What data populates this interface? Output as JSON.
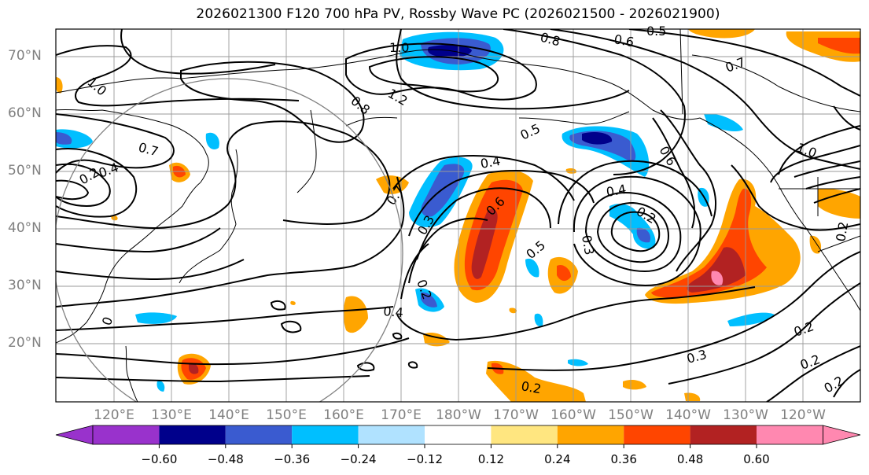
{
  "title": "2026021300 F120 700 hPa PV, Rossby Wave PC (2026021500 - 2026021900)",
  "lat_ticks": [
    "70°N",
    "60°N",
    "50°N",
    "40°N",
    "30°N",
    "20°N"
  ],
  "lon_ticks": [
    "120°E",
    "130°E",
    "140°E",
    "150°E",
    "160°E",
    "170°E",
    "180°W",
    "170°W",
    "160°W",
    "150°W",
    "140°W",
    "130°W",
    "120°W"
  ],
  "colorbar": {
    "labels": [
      "−0.60",
      "−0.48",
      "−0.36",
      "−0.24",
      "−0.12",
      "0.12",
      "0.24",
      "0.36",
      "0.48",
      "0.60"
    ],
    "colors": [
      "#9932cc",
      "#00008b",
      "#3a5bd0",
      "#00bfff",
      "#b0e2ff",
      "#ffffff",
      "#ffe680",
      "#ffa500",
      "#ff4500",
      "#b22222",
      "#ff88b0"
    ]
  },
  "contour_labels": [
    "1.0",
    "1.0",
    "1.2",
    "0.8",
    "0.8",
    "0.6",
    "0.5",
    "0.7",
    "0.7",
    "0.5",
    "0.4",
    "0.7",
    "0.6",
    "0.4",
    "0.2",
    "0.3",
    "0.3",
    "0.2",
    "0.6",
    "0.5",
    "0.4",
    "1.0",
    "0.2",
    "0.3",
    "0.2",
    "0.2",
    "0.2",
    "0.2",
    "0.2",
    "0.4",
    "0"
  ]
}
